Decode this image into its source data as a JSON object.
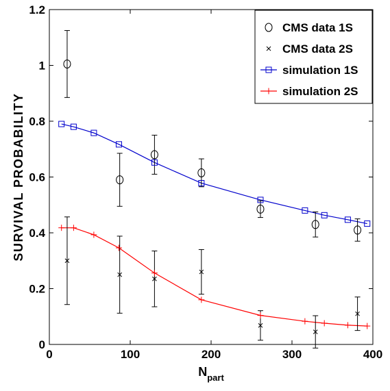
{
  "chart_data": {
    "type": "scatter",
    "xlabel": {
      "main": "N",
      "sub": "part"
    },
    "ylabel": "SURVIVAL PROBABILITY",
    "xlim": [
      0,
      400
    ],
    "ylim": [
      0,
      1.2
    ],
    "x_ticks": [
      "0",
      "100",
      "200",
      "300",
      "400"
    ],
    "y_ticks": [
      "0",
      "0.2",
      "0.4",
      "0.6",
      "0.8",
      "1",
      "1.2"
    ],
    "grid": false,
    "legend_position": "top-right",
    "series": [
      {
        "name": "CMS data 1S",
        "marker": "circle",
        "color": "#000000",
        "x": [
          22,
          87,
          130,
          188,
          261,
          329,
          381
        ],
        "y": [
          1.005,
          0.59,
          0.68,
          0.615,
          0.485,
          0.43,
          0.41
        ],
        "err": [
          0.12,
          0.095,
          0.07,
          0.05,
          0.03,
          0.045,
          0.04
        ]
      },
      {
        "name": "CMS data 2S",
        "marker": "x",
        "color": "#000000",
        "x": [
          22,
          87,
          130,
          188,
          261,
          329,
          381
        ],
        "y": [
          0.3,
          0.25,
          0.235,
          0.26,
          0.068,
          0.045,
          0.11
        ],
        "err": [
          0.157,
          0.138,
          0.1,
          0.08,
          0.053,
          0.058,
          0.06
        ]
      },
      {
        "name": "simulation 1S",
        "marker": "square",
        "color": "#0000cc",
        "x": [
          15,
          30,
          55,
          86,
          130,
          188,
          261,
          316,
          340,
          369,
          393
        ],
        "y": [
          0.79,
          0.78,
          0.758,
          0.717,
          0.652,
          0.578,
          0.518,
          0.48,
          0.463,
          0.447,
          0.433
        ]
      },
      {
        "name": "simulation 2S",
        "marker": "plus",
        "color": "#ff0000",
        "x": [
          15,
          30,
          55,
          86,
          130,
          188,
          261,
          316,
          340,
          369,
          393
        ],
        "y": [
          0.418,
          0.418,
          0.393,
          0.346,
          0.256,
          0.16,
          0.104,
          0.083,
          0.076,
          0.069,
          0.066
        ]
      }
    ]
  }
}
